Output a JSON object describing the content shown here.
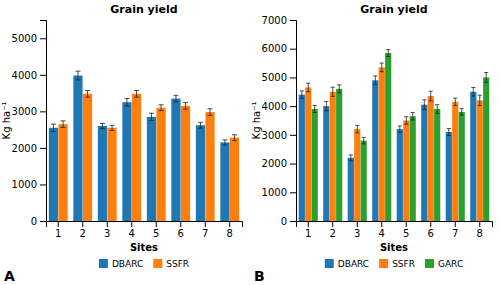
{
  "chart_data": [
    {
      "type": "bar",
      "title": "Grain yield",
      "x_label": "Sites",
      "y_label": "Kg ha⁻¹",
      "categories": [
        "1",
        "2",
        "3",
        "4",
        "5",
        "6",
        "7",
        "8"
      ],
      "series": [
        {
          "name": "DBARC",
          "values": [
            2550,
            3980,
            2600,
            3250,
            2850,
            3350,
            2620,
            2150
          ],
          "errors": [
            100,
            120,
            70,
            100,
            100,
            90,
            80,
            70
          ]
        },
        {
          "name": "SSFR",
          "values": [
            2650,
            3480,
            2550,
            3480,
            3100,
            3150,
            2980,
            2280
          ],
          "errors": [
            90,
            90,
            70,
            90,
            80,
            90,
            90,
            80
          ]
        }
      ],
      "ylim": [
        0,
        5500
      ],
      "yticks": [
        0,
        1000,
        2000,
        3000,
        4000,
        5000
      ],
      "grid": false,
      "legend": "bottom",
      "annotations": [
        "A"
      ]
    },
    {
      "type": "bar",
      "title": "Grain yield",
      "x_label": "Sites",
      "y_label": "Kg ha⁻¹",
      "categories": [
        "1",
        "2",
        "3",
        "4",
        "5",
        "6",
        "7",
        "8"
      ],
      "series": [
        {
          "name": "DBARC",
          "values": [
            4400,
            4000,
            2200,
            4900,
            3200,
            4050,
            3100,
            4500
          ],
          "errors": [
            130,
            160,
            100,
            150,
            110,
            170,
            120,
            150
          ]
        },
        {
          "name": "SSFR",
          "values": [
            4650,
            4500,
            3200,
            5350,
            3500,
            4350,
            4150,
            4200
          ],
          "errors": [
            150,
            160,
            130,
            150,
            130,
            170,
            130,
            180
          ]
        },
        {
          "name": "GARC",
          "values": [
            3900,
            4600,
            2800,
            5850,
            3650,
            3900,
            3800,
            5000
          ],
          "errors": [
            120,
            140,
            110,
            120,
            130,
            150,
            110,
            170
          ]
        }
      ],
      "ylim": [
        0,
        7000
      ],
      "yticks": [
        0,
        1000,
        2000,
        3000,
        4000,
        5000,
        6000,
        7000
      ],
      "grid": false,
      "legend": "bottom",
      "annotations": [
        "B"
      ]
    }
  ]
}
